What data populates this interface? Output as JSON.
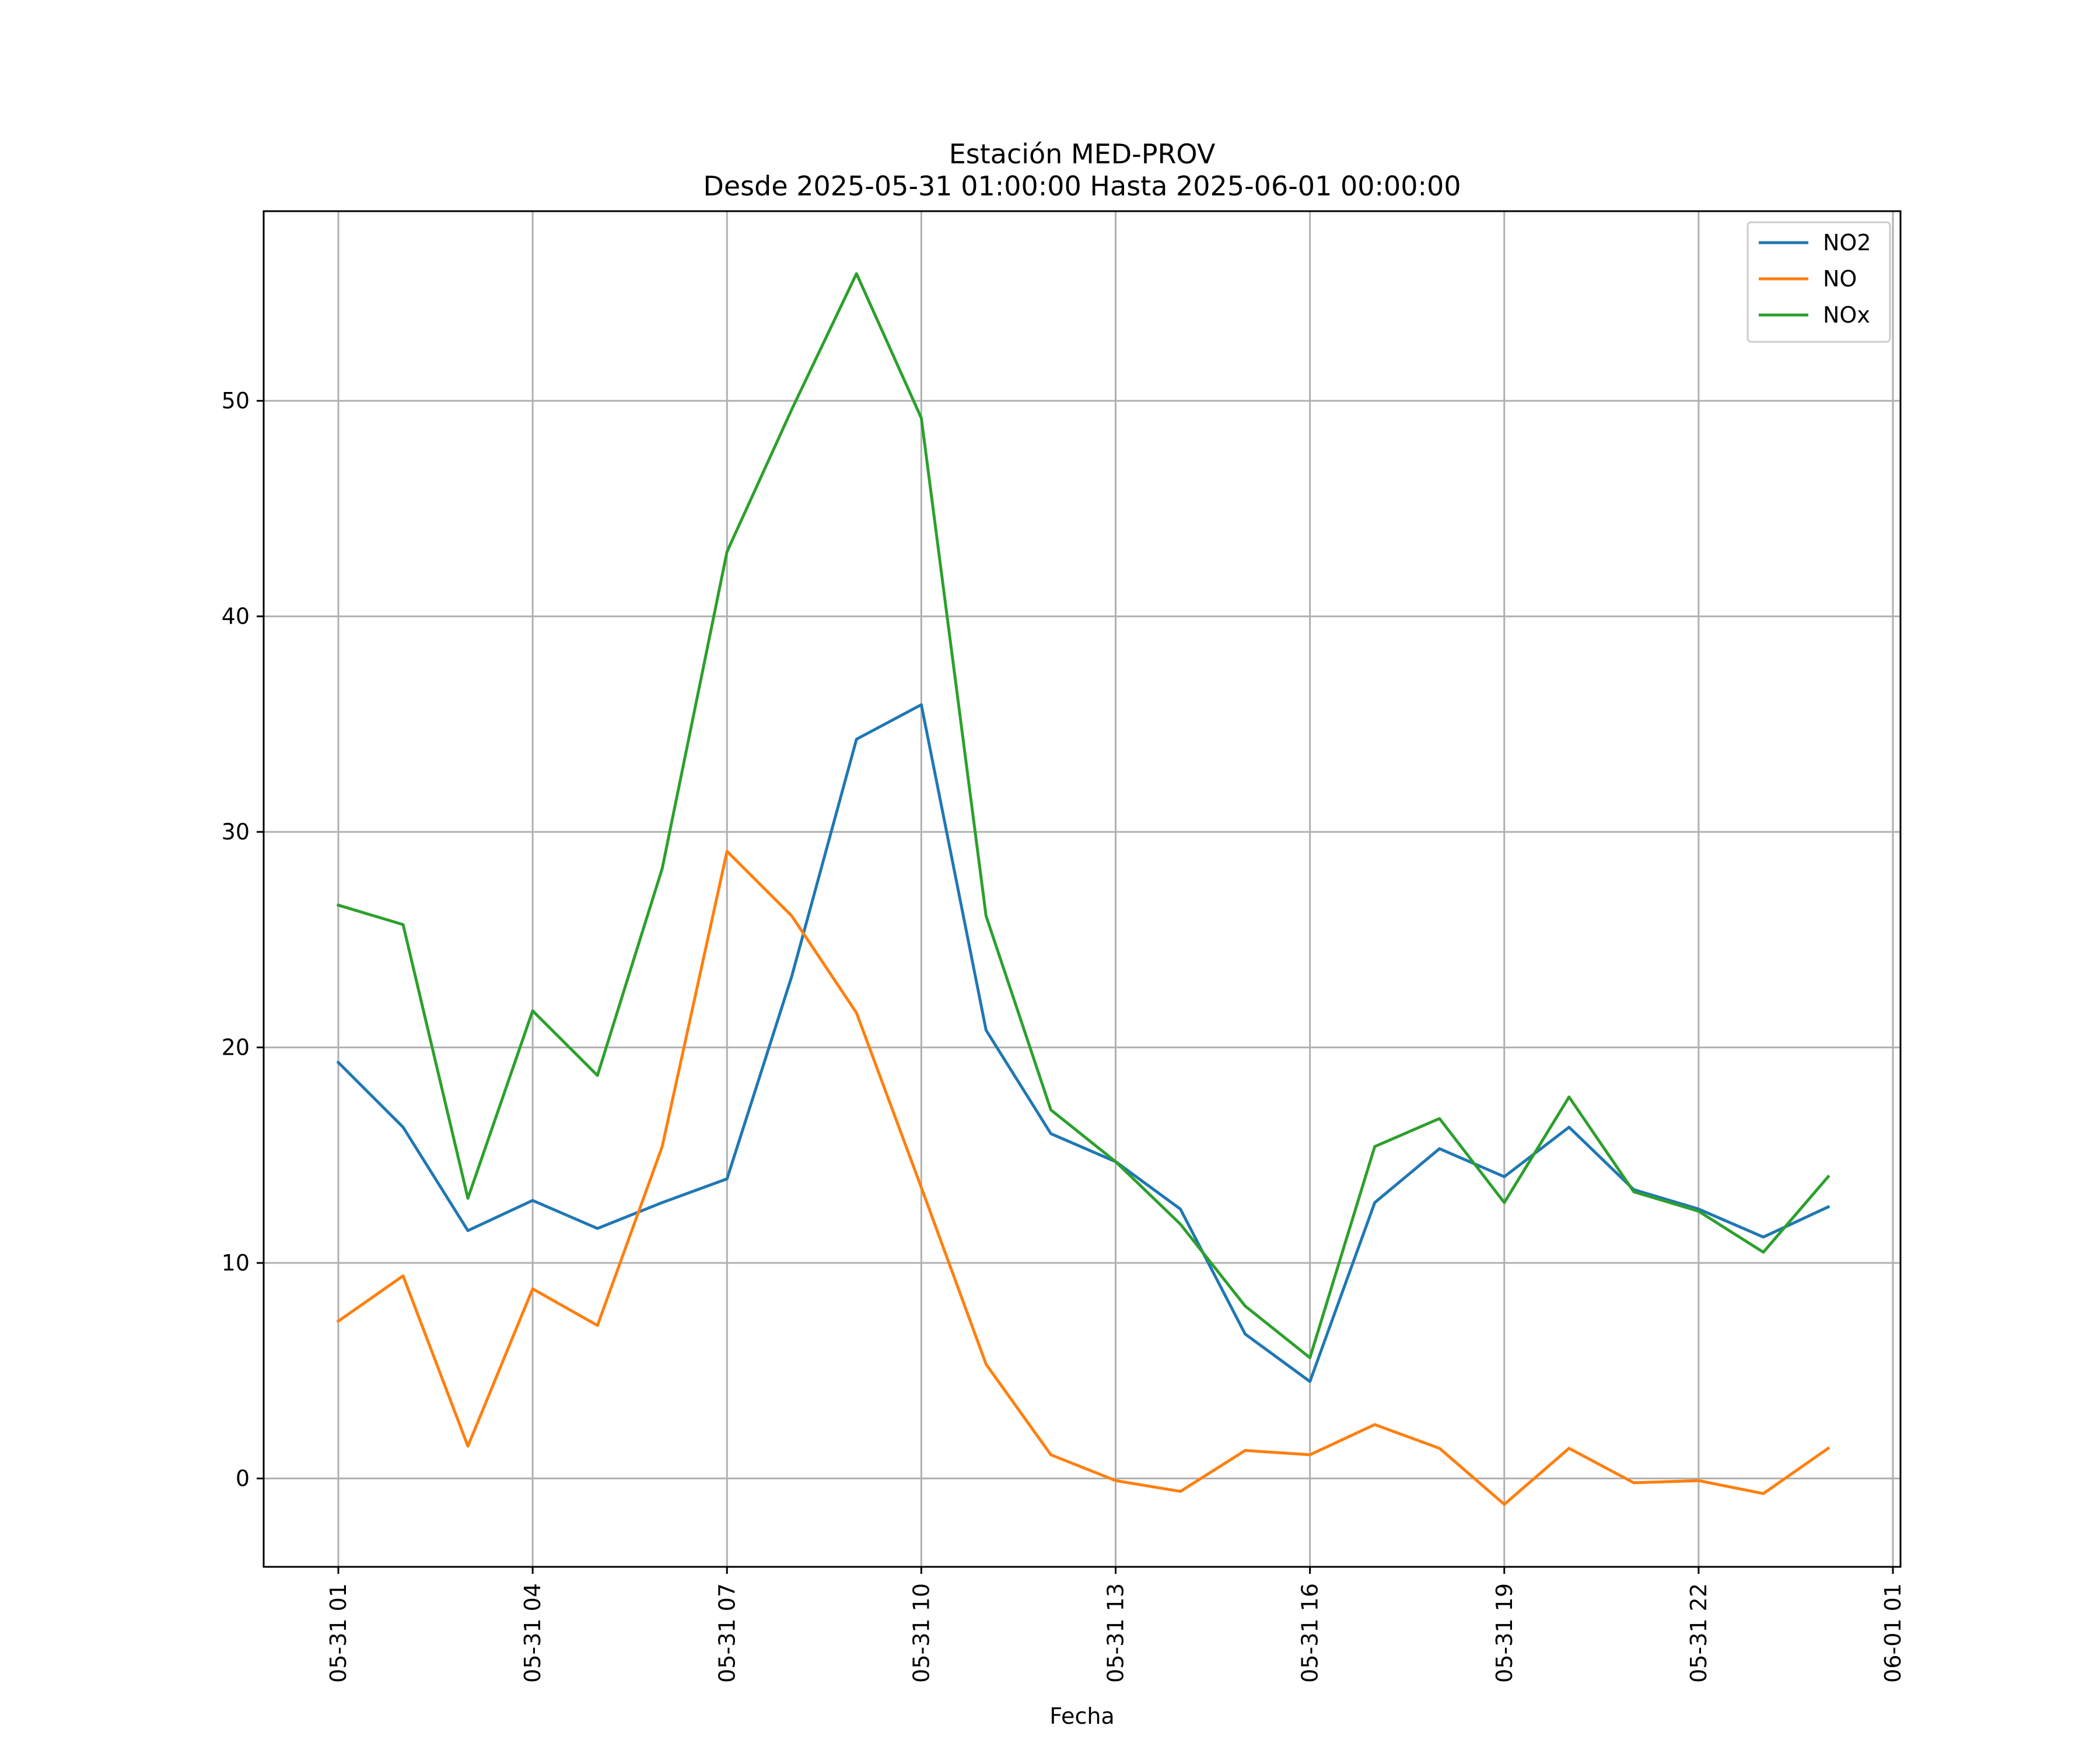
{
  "chart_data": {
    "type": "line",
    "title": "Estación MED-PROV",
    "subtitle": "Desde 2025-05-31 01:00:00 Hasta 2025-06-01 00:00:00",
    "xlabel": "Fecha",
    "ylabel": "",
    "x_start": "2025-05-31 01:00",
    "x_end": "2025-06-01 01:00",
    "x": [
      "05-31 01",
      "05-31 02",
      "05-31 03",
      "05-31 04",
      "05-31 05",
      "05-31 06",
      "05-31 07",
      "05-31 08",
      "05-31 09",
      "05-31 10",
      "05-31 11",
      "05-31 12",
      "05-31 13",
      "05-31 14",
      "05-31 15",
      "05-31 16",
      "05-31 17",
      "05-31 18",
      "05-31 19",
      "05-31 20",
      "05-31 21",
      "05-31 22",
      "05-31 23",
      "06-01 00"
    ],
    "xticks": [
      "05-31 01",
      "05-31 04",
      "05-31 07",
      "05-31 10",
      "05-31 13",
      "05-31 16",
      "05-31 19",
      "05-31 22",
      "06-01 01"
    ],
    "ylim": [
      -4.1,
      58.8
    ],
    "yticks": [
      0,
      10,
      20,
      30,
      40,
      50
    ],
    "grid": true,
    "legend_position": "top-right",
    "series": [
      {
        "name": "NO2",
        "color": "#1f77b4",
        "values": [
          19.3,
          16.3,
          11.5,
          12.9,
          11.6,
          12.8,
          13.9,
          23.3,
          34.3,
          35.9,
          20.8,
          16.0,
          14.7,
          12.5,
          6.7,
          4.5,
          12.8,
          15.3,
          14.0,
          16.3,
          13.4,
          12.5,
          11.2,
          12.6
        ]
      },
      {
        "name": "NO",
        "color": "#ff7f0e",
        "values": [
          7.3,
          9.4,
          1.5,
          8.8,
          7.1,
          15.4,
          29.1,
          26.1,
          21.6,
          13.5,
          5.3,
          1.1,
          -0.1,
          -0.6,
          1.3,
          1.1,
          2.5,
          1.4,
          -1.2,
          1.4,
          -0.2,
          -0.1,
          -0.7,
          1.4
        ]
      },
      {
        "name": "NOx",
        "color": "#2ca02c",
        "values": [
          26.6,
          25.7,
          13.0,
          21.7,
          18.7,
          28.3,
          43.0,
          49.6,
          55.9,
          49.2,
          26.1,
          17.1,
          14.7,
          11.8,
          8.0,
          5.6,
          15.4,
          16.7,
          12.8,
          17.7,
          13.3,
          12.4,
          10.5,
          14.0
        ]
      }
    ]
  }
}
